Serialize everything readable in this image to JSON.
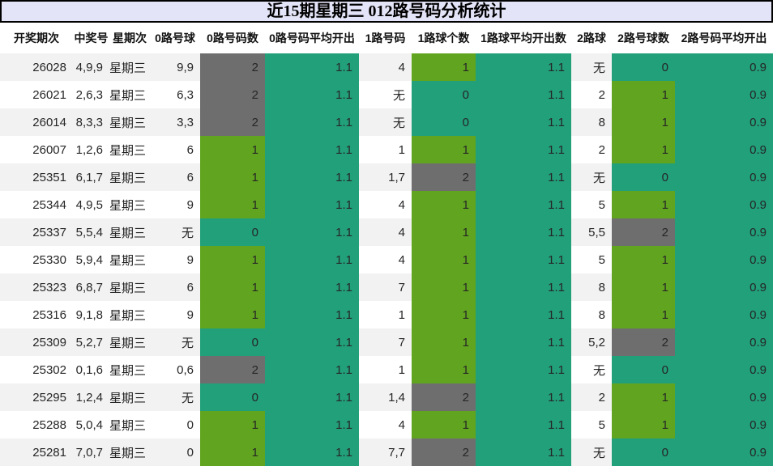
{
  "title": "近15期星期三 012路号码分析统计",
  "colors": {
    "title_bar_bg": "#e4e4f8",
    "title_bar_border": "#000000",
    "row_stripe": "#f2f2f2",
    "count_0_cell": "#21a07a",
    "count_1_cell": "#61a41f",
    "count_2_cell": "#6e6e6e",
    "avg_cell": "#21a07a",
    "colored_cell_text": "#f5f5f5"
  },
  "chart_data": {
    "type": "table",
    "title": "近15期星期三 012路号码分析统计",
    "columns": [
      {
        "key": "period",
        "label": "开奖期次",
        "type": "plain"
      },
      {
        "key": "win",
        "label": "中奖号",
        "type": "plain"
      },
      {
        "key": "week",
        "label": "星期次",
        "type": "plain"
      },
      {
        "key": "r0",
        "label": "0路号球",
        "type": "plain"
      },
      {
        "key": "c0",
        "label": "0路号码数",
        "type": "count"
      },
      {
        "key": "a0",
        "label": "0路号码平均开出",
        "type": "avg"
      },
      {
        "key": "r1",
        "label": "1路号码",
        "type": "plain"
      },
      {
        "key": "c1",
        "label": "1路球个数",
        "type": "count"
      },
      {
        "key": "a1",
        "label": "1路球平均开出数",
        "type": "avg"
      },
      {
        "key": "r2",
        "label": "2路球",
        "type": "plain"
      },
      {
        "key": "c2",
        "label": "2路号球数",
        "type": "count"
      },
      {
        "key": "a2",
        "label": "2路号码平均开出",
        "type": "avg"
      }
    ],
    "rows": [
      {
        "period": "26028",
        "win": "4,9,9",
        "week": "星期三",
        "r0": "9,9",
        "c0": 2,
        "a0": "1.1",
        "r1": "4",
        "c1": 1,
        "a1": "1.1",
        "r2": "无",
        "c2": 0,
        "a2": "0.9"
      },
      {
        "period": "26021",
        "win": "2,6,3",
        "week": "星期三",
        "r0": "6,3",
        "c0": 2,
        "a0": "1.1",
        "r1": "无",
        "c1": 0,
        "a1": "1.1",
        "r2": "2",
        "c2": 1,
        "a2": "0.9"
      },
      {
        "period": "26014",
        "win": "8,3,3",
        "week": "星期三",
        "r0": "3,3",
        "c0": 2,
        "a0": "1.1",
        "r1": "无",
        "c1": 0,
        "a1": "1.1",
        "r2": "8",
        "c2": 1,
        "a2": "0.9"
      },
      {
        "period": "26007",
        "win": "1,2,6",
        "week": "星期三",
        "r0": "6",
        "c0": 1,
        "a0": "1.1",
        "r1": "1",
        "c1": 1,
        "a1": "1.1",
        "r2": "2",
        "c2": 1,
        "a2": "0.9"
      },
      {
        "period": "25351",
        "win": "6,1,7",
        "week": "星期三",
        "r0": "6",
        "c0": 1,
        "a0": "1.1",
        "r1": "1,7",
        "c1": 2,
        "a1": "1.1",
        "r2": "无",
        "c2": 0,
        "a2": "0.9"
      },
      {
        "period": "25344",
        "win": "4,9,5",
        "week": "星期三",
        "r0": "9",
        "c0": 1,
        "a0": "1.1",
        "r1": "4",
        "c1": 1,
        "a1": "1.1",
        "r2": "5",
        "c2": 1,
        "a2": "0.9"
      },
      {
        "period": "25337",
        "win": "5,5,4",
        "week": "星期三",
        "r0": "无",
        "c0": 0,
        "a0": "1.1",
        "r1": "4",
        "c1": 1,
        "a1": "1.1",
        "r2": "5,5",
        "c2": 2,
        "a2": "0.9"
      },
      {
        "period": "25330",
        "win": "5,9,4",
        "week": "星期三",
        "r0": "9",
        "c0": 1,
        "a0": "1.1",
        "r1": "4",
        "c1": 1,
        "a1": "1.1",
        "r2": "5",
        "c2": 1,
        "a2": "0.9"
      },
      {
        "period": "25323",
        "win": "6,8,7",
        "week": "星期三",
        "r0": "6",
        "c0": 1,
        "a0": "1.1",
        "r1": "7",
        "c1": 1,
        "a1": "1.1",
        "r2": "8",
        "c2": 1,
        "a2": "0.9"
      },
      {
        "period": "25316",
        "win": "9,1,8",
        "week": "星期三",
        "r0": "9",
        "c0": 1,
        "a0": "1.1",
        "r1": "1",
        "c1": 1,
        "a1": "1.1",
        "r2": "8",
        "c2": 1,
        "a2": "0.9"
      },
      {
        "period": "25309",
        "win": "5,2,7",
        "week": "星期三",
        "r0": "无",
        "c0": 0,
        "a0": "1.1",
        "r1": "7",
        "c1": 1,
        "a1": "1.1",
        "r2": "5,2",
        "c2": 2,
        "a2": "0.9"
      },
      {
        "period": "25302",
        "win": "0,1,6",
        "week": "星期三",
        "r0": "0,6",
        "c0": 2,
        "a0": "1.1",
        "r1": "1",
        "c1": 1,
        "a1": "1.1",
        "r2": "无",
        "c2": 0,
        "a2": "0.9"
      },
      {
        "period": "25295",
        "win": "1,2,4",
        "week": "星期三",
        "r0": "无",
        "c0": 0,
        "a0": "1.1",
        "r1": "1,4",
        "c1": 2,
        "a1": "1.1",
        "r2": "2",
        "c2": 1,
        "a2": "0.9"
      },
      {
        "period": "25288",
        "win": "5,0,4",
        "week": "星期三",
        "r0": "0",
        "c0": 1,
        "a0": "1.1",
        "r1": "4",
        "c1": 1,
        "a1": "1.1",
        "r2": "5",
        "c2": 1,
        "a2": "0.9"
      },
      {
        "period": "25281",
        "win": "7,0,7",
        "week": "星期三",
        "r0": "0",
        "c0": 1,
        "a0": "1.1",
        "r1": "7,7",
        "c1": 2,
        "a1": "1.1",
        "r2": "无",
        "c2": 0,
        "a2": "0.9"
      }
    ],
    "color_coding": {
      "count_0": "#21a07a",
      "count_1": "#61a41f",
      "count_2": "#6e6e6e",
      "average_columns": "#21a07a"
    }
  }
}
